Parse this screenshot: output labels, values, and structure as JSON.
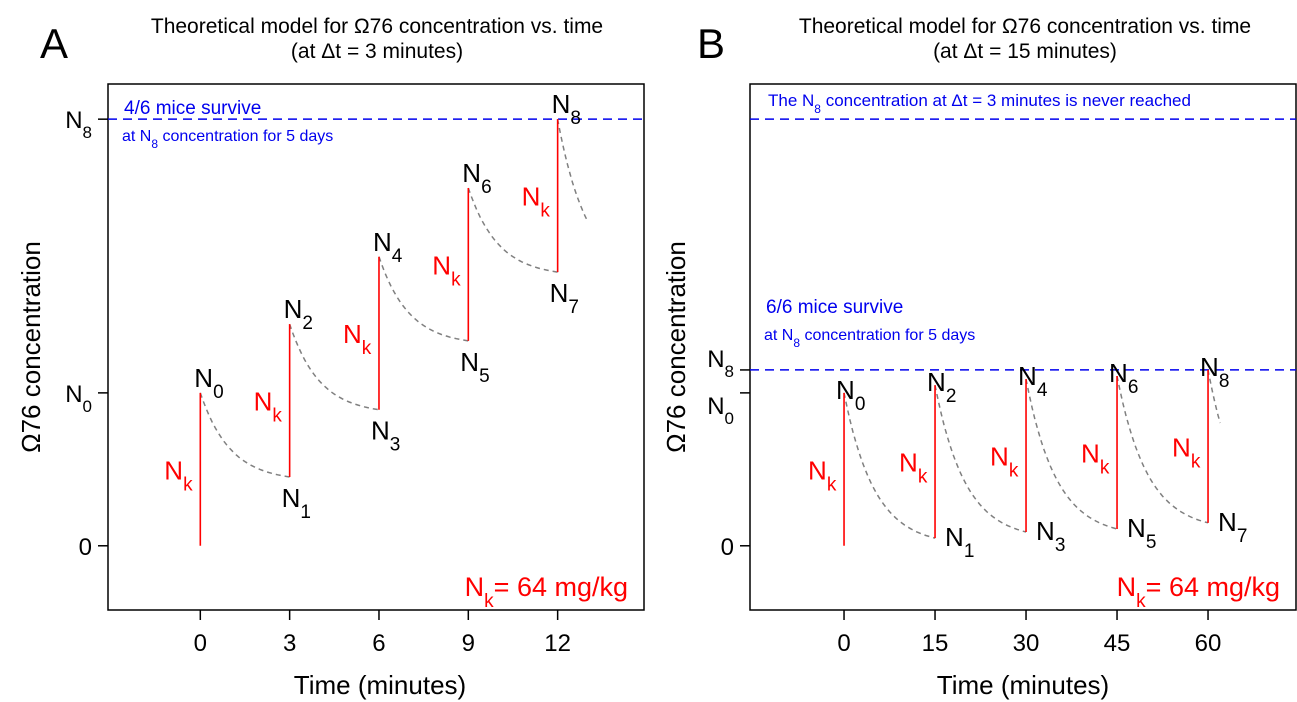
{
  "colors": {
    "jump": "#ff0000",
    "decay": "#808080",
    "threshold": "#0000ee",
    "text": "#000000",
    "annotation": "#0000ee"
  },
  "chart_data": [
    {
      "type": "line",
      "panel_letter": "A",
      "title_line1": "Theoretical model for Ω76 concentration vs. time",
      "title_line2": "(at Δt = 3 minutes)",
      "xlabel": "Time (minutes)",
      "ylabel": "Ω76 concentration",
      "xticks": [
        0,
        3,
        6,
        9,
        12
      ],
      "xtick_labels": [
        "0",
        "3",
        "6",
        "9",
        "12"
      ],
      "xlim": [
        -3.1,
        14.9
      ],
      "ylim": [
        -0.42,
        3.02
      ],
      "yticks": [
        {
          "value": 0,
          "label": "0",
          "sub": ""
        },
        {
          "value": 1,
          "label": "N",
          "sub": "0"
        },
        {
          "value": 2.79,
          "label": "N",
          "sub": "8"
        }
      ],
      "jump_label": "N",
      "jump_label_sub": "k",
      "dose": {
        "label_main": "N",
        "label_sub": "k",
        "label_rest": "= 64 mg/kg"
      },
      "threshold": {
        "y": 2.79,
        "annotation_line1": "4/6 mice survive",
        "annotation_line2_pre": "at N",
        "annotation_line2_sub": "8",
        "annotation_line2_post": " concentration for 5 days"
      },
      "points": [
        {
          "name": "N",
          "sub": "0",
          "t": 0,
          "y": 1.0
        },
        {
          "name": "N",
          "sub": "1",
          "t": 3,
          "y": 0.45
        },
        {
          "name": "N",
          "sub": "2",
          "t": 3,
          "y": 1.45
        },
        {
          "name": "N",
          "sub": "3",
          "t": 6,
          "y": 0.89
        },
        {
          "name": "N",
          "sub": "4",
          "t": 6,
          "y": 1.89
        },
        {
          "name": "N",
          "sub": "5",
          "t": 9,
          "y": 1.34
        },
        {
          "name": "N",
          "sub": "6",
          "t": 9,
          "y": 2.34
        },
        {
          "name": "N",
          "sub": "7",
          "t": 12,
          "y": 1.79
        },
        {
          "name": "N",
          "sub": "8",
          "t": 12,
          "y": 2.79
        }
      ],
      "decay_tail_to": 13
    },
    {
      "type": "line",
      "panel_letter": "B",
      "title_line1": "Theoretical model for Ω76 concentration vs. time",
      "title_line2": "(at Δt = 15 minutes)",
      "xlabel": "Time (minutes)",
      "ylabel": "Ω76 concentration",
      "xticks": [
        0,
        15,
        30,
        45,
        60
      ],
      "xtick_labels": [
        "0",
        "15",
        "30",
        "45",
        "60"
      ],
      "xlim": [
        -15.5,
        74.5
      ],
      "ylim": [
        -0.42,
        3.02
      ],
      "yticks": [
        {
          "value": 0,
          "label": "0",
          "sub": ""
        },
        {
          "value": 1,
          "label": "N",
          "sub": "0"
        },
        {
          "value": 1.15,
          "label": "N",
          "sub": "8"
        }
      ],
      "jump_label": "N",
      "jump_label_sub": "k",
      "dose": {
        "label_main": "N",
        "label_sub": "k",
        "label_rest": "= 64 mg/kg"
      },
      "threshold": {
        "y": 1.15,
        "annotation_line1": "6/6 mice survive",
        "annotation_line2_pre": "at N",
        "annotation_line2_sub": "8",
        "annotation_line2_post": " concentration for 5 days"
      },
      "upper_line": {
        "y": 2.79,
        "annotation_pre": "The N",
        "annotation_sub": "8",
        "annotation_post": " concentration at Δt = 3 minutes is never reached"
      },
      "points": [
        {
          "name": "N",
          "sub": "0",
          "t": 0,
          "y": 1.0
        },
        {
          "name": "N",
          "sub": "1",
          "t": 15,
          "y": 0.05
        },
        {
          "name": "N",
          "sub": "2",
          "t": 15,
          "y": 1.05
        },
        {
          "name": "N",
          "sub": "3",
          "t": 30,
          "y": 0.09
        },
        {
          "name": "N",
          "sub": "4",
          "t": 30,
          "y": 1.09
        },
        {
          "name": "N",
          "sub": "5",
          "t": 45,
          "y": 0.11
        },
        {
          "name": "N",
          "sub": "6",
          "t": 45,
          "y": 1.11
        },
        {
          "name": "N",
          "sub": "7",
          "t": 60,
          "y": 0.15
        },
        {
          "name": "N",
          "sub": "8",
          "t": 60,
          "y": 1.15
        }
      ],
      "decay_tail_to": 62
    }
  ]
}
